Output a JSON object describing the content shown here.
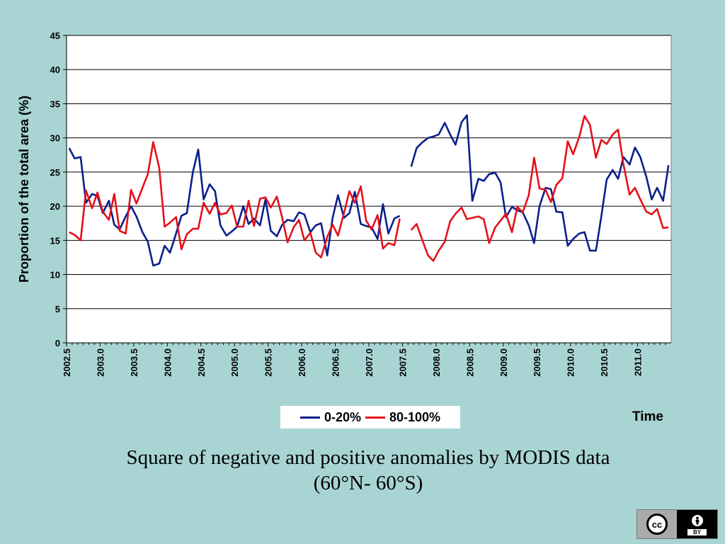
{
  "chart_data": {
    "type": "line",
    "title": "",
    "ylabel": "Proportion of the total area (%)",
    "xlabel": "Time",
    "ylim": [
      0,
      45
    ],
    "xlim": [
      2002.5,
      2011.5
    ],
    "y_ticks": [
      0,
      5,
      10,
      15,
      20,
      25,
      30,
      35,
      40,
      45
    ],
    "x_ticks": [
      "2002.5",
      "2003.0",
      "2003.5",
      "2004.0",
      "2004.5",
      "2005.0",
      "2005.5",
      "2006.0",
      "2006.5",
      "2007.0",
      "2007.5",
      "2008.0",
      "2008.5",
      "2009.0",
      "2009.5",
      "2010.0",
      "2010.5",
      "2011.0"
    ],
    "grid": "horizontal",
    "legend_position": "bottom",
    "series": [
      {
        "name": "0-20%",
        "color": "#0a1f8c",
        "segments": [
          {
            "x": [
              2002.54,
              2002.62,
              2002.71,
              2002.79,
              2002.88,
              2002.96,
              2003.04,
              2003.13,
              2003.21,
              2003.29,
              2003.38,
              2003.46,
              2003.54,
              2003.63,
              2003.71,
              2003.79,
              2003.88,
              2003.96,
              2004.04,
              2004.13,
              2004.21,
              2004.29,
              2004.38,
              2004.46,
              2004.54,
              2004.63,
              2004.71,
              2004.79,
              2004.88,
              2004.96,
              2005.04,
              2005.13,
              2005.21,
              2005.29,
              2005.38,
              2005.46,
              2005.54,
              2005.63,
              2005.71,
              2005.79,
              2005.88,
              2005.96,
              2006.04,
              2006.13,
              2006.21,
              2006.29,
              2006.38,
              2006.46,
              2006.54,
              2006.63,
              2006.71,
              2006.79,
              2006.88,
              2006.96,
              2007.04,
              2007.13,
              2007.21,
              2007.29,
              2007.38,
              2007.46
            ],
            "y": [
              28.5,
              27.0,
              27.2,
              20.5,
              21.8,
              21.5,
              19.0,
              20.8,
              17.3,
              16.6,
              18.5,
              20.0,
              18.5,
              16.2,
              14.8,
              11.3,
              11.6,
              14.2,
              13.2,
              16.0,
              18.6,
              19.0,
              25.0,
              28.3,
              21.0,
              23.2,
              22.2,
              17.2,
              15.7,
              16.3,
              17.0,
              20.0,
              17.4,
              18.2,
              17.2,
              21.0,
              16.4,
              15.6,
              17.3,
              18.0,
              17.8,
              19.1,
              18.8,
              16.2,
              17.2,
              17.5,
              12.8,
              18.3,
              21.6,
              18.3,
              19.0,
              22.1,
              17.4,
              17.1,
              16.9,
              15.2,
              20.3,
              16.0,
              18.2,
              18.6
            ]
          },
          {
            "x": [
              2007.63,
              2007.71,
              2007.79,
              2007.88,
              2007.96,
              2008.04,
              2008.13,
              2008.21,
              2008.29,
              2008.38,
              2008.46,
              2008.54,
              2008.63,
              2008.71,
              2008.79,
              2008.88,
              2008.96,
              2009.04,
              2009.13,
              2009.21,
              2009.29,
              2009.38,
              2009.46,
              2009.54,
              2009.63,
              2009.71,
              2009.79,
              2009.88,
              2009.96,
              2010.04,
              2010.13,
              2010.21,
              2010.29,
              2010.38,
              2010.46,
              2010.54,
              2010.63,
              2010.71,
              2010.79,
              2010.88,
              2010.96,
              2011.04,
              2011.13,
              2011.21,
              2011.29,
              2011.38,
              2011.46
            ],
            "y": [
              25.8,
              28.5,
              29.3,
              30.0,
              30.2,
              30.5,
              32.2,
              30.5,
              29.0,
              32.3,
              33.3,
              20.8,
              24.0,
              23.7,
              24.7,
              24.9,
              23.5,
              18.4,
              19.9,
              19.4,
              19.1,
              17.2,
              14.6,
              20.0,
              22.7,
              22.5,
              19.2,
              19.1,
              14.2,
              15.2,
              16.0,
              16.2,
              13.5,
              13.5,
              18.5,
              23.9,
              25.3,
              24.0,
              27.2,
              26.1,
              28.6,
              27.2,
              24.3,
              21.0,
              22.7,
              20.8,
              26.0
            ]
          }
        ]
      },
      {
        "name": "80-100%",
        "color": "#e4101a",
        "segments": [
          {
            "x": [
              2002.54,
              2002.62,
              2002.71,
              2002.79,
              2002.88,
              2002.96,
              2003.04,
              2003.13,
              2003.21,
              2003.29,
              2003.38,
              2003.46,
              2003.54,
              2003.63,
              2003.71,
              2003.79,
              2003.88,
              2003.96,
              2004.04,
              2004.13,
              2004.21,
              2004.29,
              2004.38,
              2004.46,
              2004.54,
              2004.63,
              2004.71,
              2004.79,
              2004.88,
              2004.96,
              2005.04,
              2005.13,
              2005.21,
              2005.29,
              2005.38,
              2005.46,
              2005.54,
              2005.63,
              2005.71,
              2005.79,
              2005.88,
              2005.96,
              2006.04,
              2006.13,
              2006.21,
              2006.29,
              2006.38,
              2006.46,
              2006.54,
              2006.63,
              2006.71,
              2006.79,
              2006.88,
              2006.96,
              2007.04,
              2007.13,
              2007.21,
              2007.29,
              2007.38,
              2007.46
            ],
            "y": [
              16.2,
              15.8,
              15.0,
              22.3,
              19.7,
              22.0,
              19.2,
              18.0,
              21.8,
              16.4,
              16.0,
              22.4,
              20.4,
              22.7,
              24.7,
              29.4,
              25.6,
              17.0,
              17.6,
              18.4,
              13.7,
              15.9,
              16.7,
              16.7,
              20.5,
              18.9,
              20.5,
              18.8,
              19.0,
              20.1,
              17.0,
              17.0,
              20.8,
              17.1,
              21.1,
              21.3,
              19.8,
              21.4,
              18.3,
              14.7,
              16.9,
              18.0,
              15.0,
              16.1,
              13.2,
              12.5,
              15.5,
              17.3,
              15.7,
              19.0,
              22.2,
              20.5,
              22.9,
              17.9,
              16.6,
              18.7,
              13.8,
              14.6,
              14.3,
              18.2
            ]
          },
          {
            "x": [
              2007.63,
              2007.71,
              2007.79,
              2007.88,
              2007.96,
              2008.04,
              2008.13,
              2008.21,
              2008.29,
              2008.38,
              2008.46,
              2008.54,
              2008.63,
              2008.71,
              2008.79,
              2008.88,
              2008.96,
              2009.04,
              2009.13,
              2009.21,
              2009.29,
              2009.38,
              2009.46,
              2009.54,
              2009.63,
              2009.71,
              2009.79,
              2009.88,
              2009.96,
              2010.04,
              2010.13,
              2010.21,
              2010.29,
              2010.38,
              2010.46,
              2010.54,
              2010.63,
              2010.71,
              2010.79,
              2010.88,
              2010.96,
              2011.04,
              2011.13,
              2011.21,
              2011.29,
              2011.38,
              2011.46
            ],
            "y": [
              16.5,
              17.4,
              15.2,
              12.8,
              12.0,
              13.5,
              14.8,
              17.8,
              18.9,
              19.8,
              18.1,
              18.3,
              18.5,
              18.1,
              14.6,
              16.9,
              17.9,
              18.9,
              16.2,
              19.9,
              19.1,
              21.6,
              27.1,
              22.6,
              22.4,
              20.6,
              23.1,
              24.1,
              29.5,
              27.6,
              30.1,
              33.2,
              31.9,
              27.1,
              29.7,
              29.1,
              30.5,
              31.2,
              26.1,
              21.7,
              22.7,
              21.0,
              19.2,
              18.8,
              19.6,
              16.8,
              16.9
            ]
          }
        ]
      }
    ]
  },
  "caption": {
    "line1": "Square of negative and positive anomalies by MODIS data",
    "line2": "(60°N- 60°S)"
  },
  "license_badge": {
    "cc_text": "cc",
    "by_icon": "person-icon",
    "by_text": "BY"
  }
}
